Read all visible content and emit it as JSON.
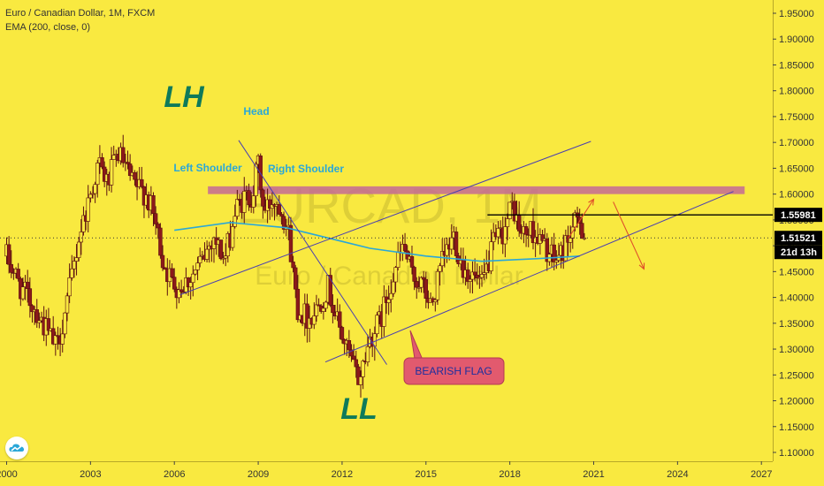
{
  "legend": {
    "symbol_line": "Euro / Canadian Dollar, 1M, FXCM",
    "indicator_line": "EMA (200, close, 0)"
  },
  "watermark": {
    "ticker": "EURCAD, 1M",
    "name": "Euro / Canadian Dollar"
  },
  "price_labels": {
    "resistance": "1.55981",
    "last": "1.51521",
    "countdown": "21d 13h"
  },
  "annotations": {
    "lh": "LH",
    "ll": "LL",
    "head": "Head",
    "left_shoulder": "Left Shoulder",
    "right_shoulder": "Right Shoulder",
    "flag": "BEARISH FLAG"
  },
  "colors": {
    "background": "#f9e940",
    "candle_up": "#f9e940",
    "candle_down": "#8b1a1a",
    "candle_wick": "#5a1010",
    "ema": "#2aa7d8",
    "channel": "#4a3fb0",
    "resistance_zone": "#c46a96",
    "arrow": "#e0502a",
    "big_label": "#0f7a5a",
    "pattern_label": "#2aa7d8",
    "flag_box": "#e25a6e",
    "flag_text": "#1c2f9f"
  },
  "chart_data": {
    "type": "candlestick",
    "symbol": "EURCAD",
    "timeframe": "1M",
    "y_ticks": [
      "1.95000",
      "1.90000",
      "1.85000",
      "1.80000",
      "1.75000",
      "1.70000",
      "1.65000",
      "1.60000",
      "1.55000",
      "1.50000",
      "1.45000",
      "1.40000",
      "1.35000",
      "1.30000",
      "1.25000",
      "1.20000",
      "1.15000",
      "1.10000"
    ],
    "x_ticks": [
      "2000",
      "2003",
      "2006",
      "2009",
      "2012",
      "2015",
      "2018",
      "2021",
      "2024",
      "2027"
    ],
    "ylim": [
      1.085,
      1.975
    ],
    "xlim": [
      2000.1,
      2028.1
    ],
    "ema_label": "EMA (200, close, 0)",
    "ema_points": [
      [
        2006.0,
        1.53
      ],
      [
        2008.0,
        1.545
      ],
      [
        2010.0,
        1.535
      ],
      [
        2011.5,
        1.515
      ],
      [
        2013.0,
        1.495
      ],
      [
        2015.0,
        1.48
      ],
      [
        2017.0,
        1.47
      ],
      [
        2019.0,
        1.475
      ],
      [
        2020.5,
        1.48
      ]
    ],
    "close_path": [
      [
        2000.0,
        1.48
      ],
      [
        2000.5,
        1.42
      ],
      [
        2001.0,
        1.38
      ],
      [
        2001.5,
        1.33
      ],
      [
        2001.8,
        1.3
      ],
      [
        2002.2,
        1.4
      ],
      [
        2002.6,
        1.52
      ],
      [
        2003.0,
        1.6
      ],
      [
        2003.3,
        1.66
      ],
      [
        2003.6,
        1.62
      ],
      [
        2004.0,
        1.68
      ],
      [
        2004.5,
        1.62
      ],
      [
        2005.0,
        1.6
      ],
      [
        2005.3,
        1.55
      ],
      [
        2005.6,
        1.47
      ],
      [
        2005.9,
        1.43
      ],
      [
        2006.2,
        1.42
      ],
      [
        2006.6,
        1.44
      ],
      [
        2007.0,
        1.47
      ],
      [
        2007.4,
        1.52
      ],
      [
        2007.8,
        1.47
      ],
      [
        2008.2,
        1.57
      ],
      [
        2008.5,
        1.59
      ],
      [
        2008.8,
        1.6
      ],
      [
        2009.0,
        1.66
      ],
      [
        2009.2,
        1.56
      ],
      [
        2009.5,
        1.59
      ],
      [
        2009.8,
        1.58
      ],
      [
        2010.1,
        1.52
      ],
      [
        2010.4,
        1.38
      ],
      [
        2010.8,
        1.36
      ],
      [
        2011.1,
        1.38
      ],
      [
        2011.5,
        1.42
      ],
      [
        2011.9,
        1.34
      ],
      [
        2012.3,
        1.28
      ],
      [
        2012.6,
        1.24
      ],
      [
        2013.0,
        1.32
      ],
      [
        2013.4,
        1.36
      ],
      [
        2013.8,
        1.44
      ],
      [
        2014.2,
        1.5
      ],
      [
        2014.5,
        1.44
      ],
      [
        2014.8,
        1.43
      ],
      [
        2015.2,
        1.38
      ],
      [
        2015.6,
        1.47
      ],
      [
        2016.0,
        1.52
      ],
      [
        2016.3,
        1.46
      ],
      [
        2016.7,
        1.44
      ],
      [
        2017.0,
        1.42
      ],
      [
        2017.4,
        1.5
      ],
      [
        2017.8,
        1.53
      ],
      [
        2018.1,
        1.58
      ],
      [
        2018.4,
        1.52
      ],
      [
        2018.8,
        1.53
      ],
      [
        2019.2,
        1.5
      ],
      [
        2019.6,
        1.47
      ],
      [
        2019.9,
        1.49
      ],
      [
        2020.2,
        1.53
      ],
      [
        2020.5,
        1.55
      ],
      [
        2020.7,
        1.5152
      ]
    ],
    "pattern_points": {
      "lh": [
        2008.9,
        1.75
      ],
      "ll": [
        2012.7,
        1.195
      ],
      "head_peak": [
        2009.0,
        1.75
      ],
      "left_shoulder_peak": [
        2007.9,
        1.66
      ],
      "right_shoulder_peak": [
        2009.6,
        1.64
      ],
      "flag_note": [
        2017.0,
        1.29
      ],
      "flag_pointer": [
        2014.6,
        1.335
      ]
    },
    "resistance_zone": [
      1.6,
      1.615
    ],
    "resistance_zone_x": [
      2007.2,
      2026.4
    ],
    "resistance_level": 1.55981,
    "resistance_level_x": 2017.2,
    "last_price": 1.51521,
    "channel_upper": [
      [
        2006.2,
        1.405
      ],
      [
        2020.9,
        1.702
      ]
    ],
    "channel_lower": [
      [
        2011.4,
        1.275
      ],
      [
        2026.0,
        1.605
      ]
    ],
    "diagonal_trend": [
      [
        2008.3,
        1.704
      ],
      [
        2013.6,
        1.27
      ]
    ],
    "projection_up": [
      [
        2020.1,
        1.515
      ],
      [
        2021.0,
        1.59
      ]
    ],
    "projection_down": [
      [
        2021.7,
        1.585
      ],
      [
        2022.8,
        1.455
      ]
    ]
  }
}
